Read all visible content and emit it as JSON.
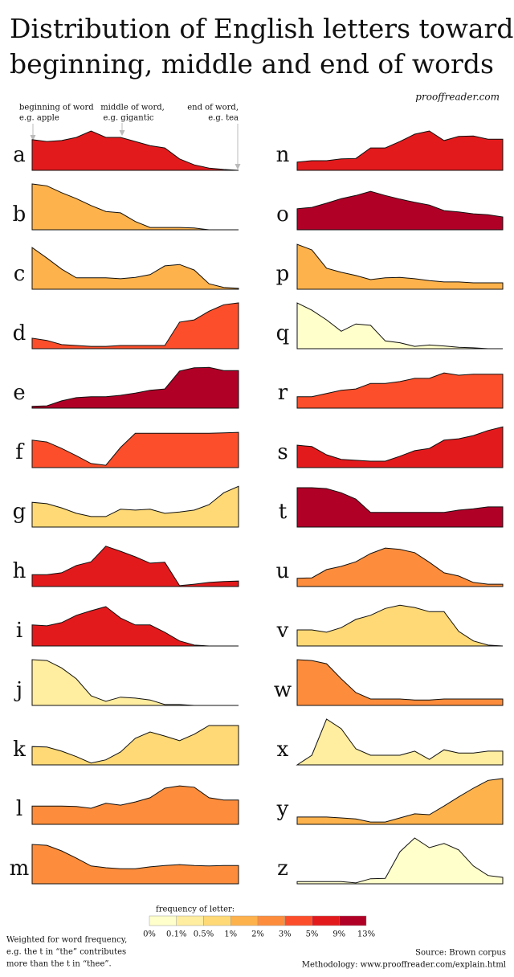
{
  "chart_data": {
    "type": "area",
    "title": [
      "Distribution of English letters toward",
      "beginning, middle and end of words"
    ],
    "credit": "prooffreader.com",
    "annotations": [
      [
        "beginning of word",
        "e.g. apple"
      ],
      [
        "middle of word,",
        "e.g. gigantic"
      ],
      [
        "end of word,",
        "e.g. tea"
      ]
    ],
    "ylim": [
      0,
      100
    ],
    "series": [
      {
        "name": "a",
        "color": "#e31a1c",
        "values": [
          67,
          63,
          65,
          72,
          86,
          72,
          72,
          63,
          54,
          49,
          25,
          12,
          5,
          2,
          0
        ]
      },
      {
        "name": "b",
        "color": "#feb24c",
        "values": [
          100,
          96,
          81,
          68,
          53,
          40,
          37,
          18,
          5,
          5,
          5,
          4,
          0,
          0,
          0
        ]
      },
      {
        "name": "c",
        "color": "#feb24c",
        "values": [
          91,
          68,
          44,
          25,
          25,
          25,
          23,
          26,
          32,
          51,
          54,
          42,
          12,
          4,
          2
        ]
      },
      {
        "name": "d",
        "color": "#fc4e2a",
        "values": [
          23,
          18,
          9,
          7,
          5,
          5,
          7,
          7,
          7,
          7,
          58,
          63,
          82,
          96,
          100
        ]
      },
      {
        "name": "e",
        "color": "#b10026",
        "values": [
          4,
          5,
          16,
          23,
          25,
          25,
          28,
          33,
          39,
          42,
          81,
          88,
          89,
          82,
          82
        ]
      },
      {
        "name": "f",
        "color": "#fc4e2a",
        "values": [
          60,
          56,
          42,
          26,
          9,
          5,
          44,
          75,
          75,
          75,
          75,
          75,
          75,
          76,
          77
        ]
      },
      {
        "name": "g",
        "color": "#fed976",
        "values": [
          54,
          51,
          42,
          30,
          23,
          23,
          39,
          37,
          39,
          30,
          33,
          37,
          49,
          75,
          89
        ]
      },
      {
        "name": "h",
        "color": "#e31a1c",
        "values": [
          26,
          26,
          30,
          46,
          54,
          88,
          77,
          65,
          51,
          53,
          2,
          5,
          9,
          11,
          12
        ]
      },
      {
        "name": "i",
        "color": "#e31a1c",
        "values": [
          46,
          44,
          51,
          67,
          77,
          86,
          61,
          46,
          46,
          30,
          11,
          2,
          0,
          0,
          0
        ]
      },
      {
        "name": "j",
        "color": "#ffeda0",
        "values": [
          100,
          98,
          82,
          58,
          21,
          9,
          18,
          16,
          12,
          2,
          2,
          0,
          0,
          0,
          0
        ]
      },
      {
        "name": "k",
        "color": "#fed976",
        "values": [
          40,
          39,
          30,
          18,
          4,
          11,
          28,
          58,
          72,
          63,
          53,
          67,
          86,
          86,
          86
        ]
      },
      {
        "name": "l",
        "color": "#fd8d3c",
        "values": [
          40,
          40,
          40,
          39,
          35,
          46,
          42,
          49,
          58,
          79,
          84,
          81,
          58,
          53,
          53
        ]
      },
      {
        "name": "m",
        "color": "#fd8d3c",
        "values": [
          86,
          84,
          72,
          56,
          39,
          35,
          33,
          33,
          37,
          40,
          42,
          40,
          39,
          40,
          40
        ]
      },
      {
        "name": "n",
        "color": "#e31a1c",
        "values": [
          18,
          21,
          21,
          25,
          26,
          49,
          49,
          63,
          79,
          86,
          65,
          74,
          75,
          68,
          68
        ]
      },
      {
        "name": "o",
        "color": "#b10026",
        "values": [
          46,
          49,
          58,
          68,
          75,
          84,
          75,
          67,
          60,
          54,
          42,
          39,
          35,
          33,
          28
        ]
      },
      {
        "name": "p",
        "color": "#feb24c",
        "values": [
          98,
          86,
          46,
          37,
          30,
          21,
          25,
          26,
          23,
          19,
          16,
          16,
          14,
          14,
          14
        ]
      },
      {
        "name": "q",
        "color": "#ffffcc",
        "values": [
          100,
          84,
          63,
          38,
          54,
          51,
          17,
          13,
          5,
          8,
          6,
          3,
          2,
          0,
          0
        ]
      },
      {
        "name": "r",
        "color": "#fc4e2a",
        "values": [
          25,
          25,
          32,
          39,
          42,
          54,
          54,
          58,
          65,
          65,
          77,
          72,
          74,
          74,
          74
        ]
      },
      {
        "name": "s",
        "color": "#e31a1c",
        "values": [
          49,
          46,
          28,
          18,
          16,
          14,
          14,
          25,
          37,
          42,
          60,
          63,
          70,
          81,
          89
        ]
      },
      {
        "name": "t",
        "color": "#b10026",
        "values": [
          86,
          86,
          84,
          75,
          61,
          32,
          32,
          32,
          32,
          32,
          32,
          37,
          40,
          44,
          44
        ]
      },
      {
        "name": "u",
        "color": "#fd8d3c",
        "values": [
          18,
          19,
          37,
          44,
          54,
          72,
          84,
          81,
          74,
          53,
          30,
          23,
          9,
          5,
          5
        ]
      },
      {
        "name": "v",
        "color": "#fed976",
        "values": [
          35,
          35,
          30,
          40,
          58,
          67,
          82,
          89,
          84,
          75,
          75,
          32,
          11,
          2,
          0
        ]
      },
      {
        "name": "w",
        "color": "#fd8d3c",
        "values": [
          100,
          98,
          91,
          58,
          28,
          14,
          14,
          14,
          12,
          12,
          14,
          14,
          14,
          14,
          14
        ]
      },
      {
        "name": "x",
        "color": "#ffeda0",
        "values": [
          0,
          21,
          100,
          79,
          35,
          21,
          21,
          21,
          30,
          12,
          33,
          26,
          26,
          30,
          30
        ]
      },
      {
        "name": "y",
        "color": "#feb24c",
        "values": [
          16,
          16,
          16,
          14,
          12,
          5,
          5,
          14,
          23,
          21,
          40,
          60,
          79,
          96,
          100
        ]
      },
      {
        "name": "z",
        "color": "#ffffcc",
        "values": [
          5,
          5,
          5,
          5,
          2,
          11,
          12,
          70,
          100,
          79,
          88,
          74,
          39,
          18,
          14
        ]
      }
    ],
    "legend": {
      "title": "frequency of letter:",
      "colors": [
        "#ffffcc",
        "#ffeda0",
        "#fed976",
        "#feb24c",
        "#fd8d3c",
        "#fc4e2a",
        "#e31a1c",
        "#b10026"
      ],
      "labels": [
        "0%",
        "0.1%",
        "0.5%",
        "1%",
        "2%",
        "3%",
        "5%",
        "9%",
        "13%"
      ]
    },
    "footnote": [
      "Weighted for word frequency,",
      "e.g. the t in “the” contributes",
      "more than the t in “thee”."
    ],
    "source": [
      "Source: Brown corpus",
      "Methodology: www.prooffreader.com/explain.html"
    ]
  }
}
